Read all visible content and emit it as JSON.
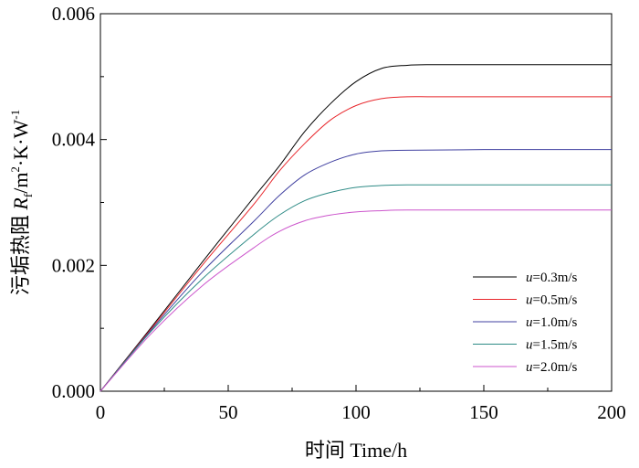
{
  "chart_data": {
    "type": "line",
    "title": "",
    "xlabel": "时间 Time/h",
    "ylabel": {
      "prefix": "污垢热阻 ",
      "symbol": "R",
      "subscript": "f",
      "unit_a": "/m",
      "sup_a": "2",
      "unit_b": "·K·W",
      "sup_b": "-1"
    },
    "xlim": [
      0,
      200
    ],
    "ylim": [
      0,
      0.006
    ],
    "x_ticks": [
      0,
      50,
      100,
      150,
      200
    ],
    "x_tick_labels": [
      "0",
      "50",
      "100",
      "150",
      "200"
    ],
    "y_ticks": [
      0,
      0.002,
      0.004,
      0.006
    ],
    "y_tick_labels": [
      "0.000",
      "0.002",
      "0.004",
      "0.006"
    ],
    "grid": false,
    "legend_position": "bottom-right",
    "series": [
      {
        "name_var": "u",
        "name_rest": "=0.3m/s",
        "color": "#000000",
        "x": [
          0,
          20,
          40,
          60,
          70,
          80,
          90,
          100,
          110,
          120,
          130,
          150,
          200
        ],
        "y": [
          0,
          0.00102,
          0.00206,
          0.00308,
          0.00358,
          0.00413,
          0.00457,
          0.00492,
          0.00513,
          0.00518,
          0.00519,
          0.00519,
          0.00519
        ]
      },
      {
        "name_var": "u",
        "name_rest": "=0.5m/s",
        "color": "#e8262b",
        "x": [
          0,
          20,
          40,
          60,
          70,
          80,
          90,
          100,
          110,
          120,
          130,
          150,
          200
        ],
        "y": [
          0,
          0.001,
          0.00201,
          0.00297,
          0.0035,
          0.00394,
          0.00431,
          0.00454,
          0.00465,
          0.00468,
          0.00468,
          0.00468,
          0.00468
        ]
      },
      {
        "name_var": "u",
        "name_rest": "=1.0m/s",
        "color": "#4040a0",
        "x": [
          0,
          20,
          40,
          60,
          70,
          80,
          90,
          100,
          110,
          120,
          150,
          200
        ],
        "y": [
          0,
          0.00098,
          0.0019,
          0.0027,
          0.00311,
          0.00344,
          0.00364,
          0.00377,
          0.00382,
          0.00383,
          0.00384,
          0.00384
        ]
      },
      {
        "name_var": "u",
        "name_rest": "=1.5m/s",
        "color": "#2e8b86",
        "x": [
          0,
          20,
          40,
          60,
          70,
          80,
          90,
          100,
          110,
          120,
          150,
          200
        ],
        "y": [
          0,
          0.00096,
          0.00179,
          0.00249,
          0.0028,
          0.00303,
          0.00316,
          0.00324,
          0.00327,
          0.00328,
          0.00328,
          0.00328
        ]
      },
      {
        "name_var": "u",
        "name_rest": "=2.0m/s",
        "color": "#cc55cc",
        "x": [
          0,
          20,
          40,
          60,
          70,
          80,
          90,
          100,
          110,
          120,
          150,
          200
        ],
        "y": [
          0,
          0.00092,
          0.00168,
          0.00228,
          0.00254,
          0.00271,
          0.0028,
          0.00285,
          0.00287,
          0.00288,
          0.00288,
          0.00288
        ]
      }
    ]
  }
}
